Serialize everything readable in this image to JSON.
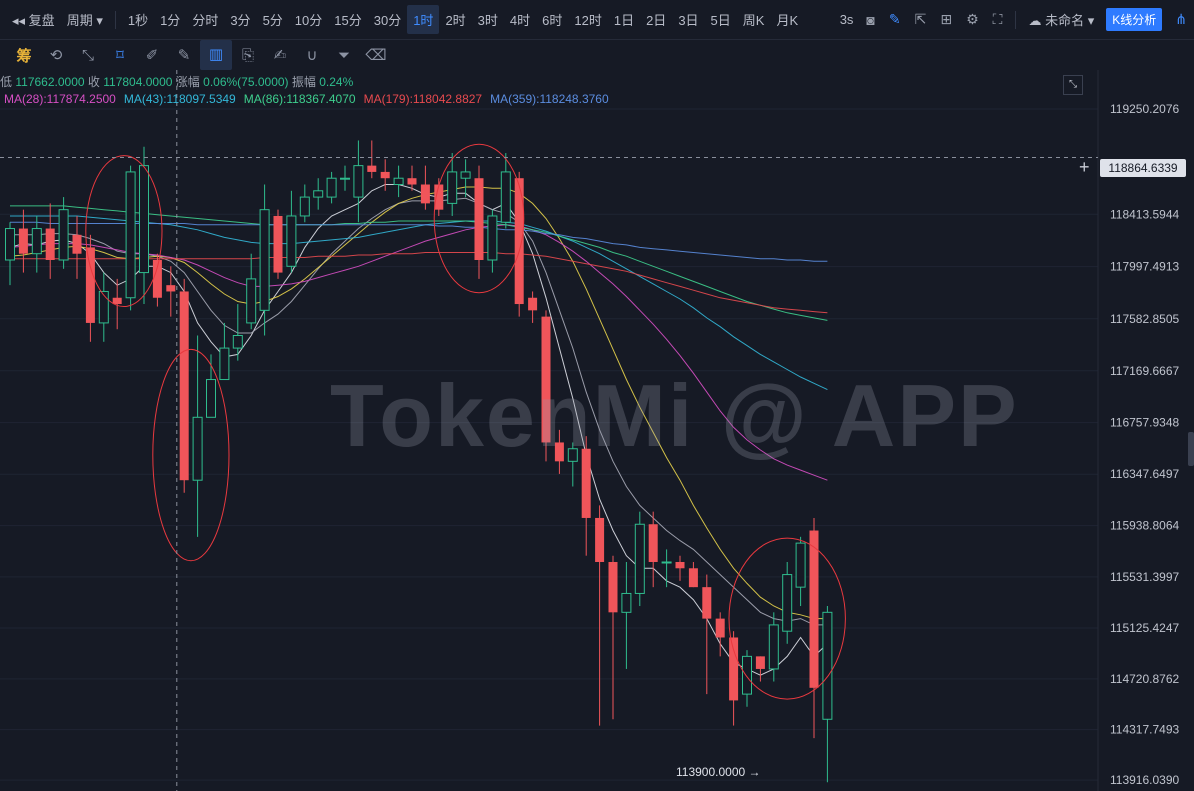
{
  "toolbar": {
    "replay_label": "复盘",
    "period_label": "周期",
    "intervals": [
      "1秒",
      "1分",
      "分时",
      "3分",
      "5分",
      "10分",
      "15分",
      "30分",
      "1时",
      "2时",
      "3时",
      "4时",
      "6时",
      "12时",
      "1日",
      "2日",
      "3日",
      "5日",
      "周K",
      "月K"
    ],
    "active_interval": "1时",
    "refresh_label": "3s",
    "layout_name": "未命名",
    "analysis_button": "K线分析"
  },
  "drawing_tools": [
    "chips-icon",
    "drawing-tools-icon",
    "ruler-icon",
    "cursor-icon",
    "pin-icon",
    "pencil-icon",
    "candles-icon",
    "clipboard-icon",
    "notes-icon",
    "magnet-icon",
    "filter-icon",
    "trash-icon"
  ],
  "draw_first_label": "筹",
  "ohlc": {
    "low_label": "低",
    "low": "117662.0000",
    "close_label": "收",
    "close": "117804.0000",
    "change_label": "涨幅",
    "change": "0.06%(75.0000)",
    "amplitude_label": "振幅",
    "amplitude": "0.24%"
  },
  "ma_legend": [
    {
      "label": "MA(28):117874.2500",
      "color": "#d64fc4"
    },
    {
      "label": "MA(43):118097.5349",
      "color": "#33b8d9"
    },
    {
      "label": "MA(86):118367.4070",
      "color": "#3ecf8e"
    },
    {
      "label": "MA(179):118042.8827",
      "color": "#e84a4f"
    },
    {
      "label": "MA(359):118248.3760",
      "color": "#5b8de0"
    }
  ],
  "crosshair_price": "118864.6339",
  "low_marker": "113900.0000 →",
  "watermark": "TokenMi @ APP",
  "colors": {
    "up": "#2fbd8e",
    "down": "#f0555a",
    "grid": "#1f2433",
    "axis_text": "#c0c4ce"
  },
  "chart_data": {
    "type": "candlestick",
    "y_ticks": [
      119250.2076,
      118413.5944,
      117997.4913,
      117582.8505,
      117169.6667,
      116757.9348,
      116347.6497,
      115938.8064,
      115531.3997,
      115125.4247,
      114720.8762,
      114317.7493,
      113916.039
    ],
    "ylim": [
      113830,
      119560
    ],
    "candles": [
      [
        118050,
        118300,
        118350,
        117850
      ],
      [
        118300,
        118100,
        118450,
        117950
      ],
      [
        118100,
        118300,
        118400,
        117950
      ],
      [
        118300,
        118050,
        118500,
        117900
      ],
      [
        118050,
        118450,
        118550,
        117980
      ],
      [
        118250,
        118100,
        118400,
        117900
      ],
      [
        118150,
        117550,
        118250,
        117400
      ],
      [
        117550,
        117800,
        117950,
        117400
      ],
      [
        117750,
        117700,
        117900,
        117500
      ],
      [
        117750,
        118750,
        118800,
        117650
      ],
      [
        117950,
        118800,
        118950,
        117700
      ],
      [
        118050,
        117750,
        118100,
        117680
      ],
      [
        117850,
        117800,
        118000,
        117600
      ],
      [
        117800,
        116300,
        117900,
        116200
      ],
      [
        116300,
        116800,
        117450,
        115850
      ],
      [
        116800,
        117100,
        117300,
        116800
      ],
      [
        117100,
        117350,
        117550,
        117100
      ],
      [
        117350,
        117450,
        117700,
        117250
      ],
      [
        117550,
        117900,
        118100,
        117500
      ],
      [
        117650,
        118450,
        118650,
        117450
      ],
      [
        118400,
        117950,
        118450,
        117900
      ],
      [
        118000,
        118400,
        118600,
        117950
      ],
      [
        118400,
        118550,
        118650,
        118350
      ],
      [
        118550,
        118600,
        118700,
        118450
      ],
      [
        118550,
        118700,
        118750,
        118500
      ],
      [
        118700,
        118700,
        118800,
        118600
      ],
      [
        118550,
        118800,
        119000,
        118350
      ],
      [
        118800,
        118750,
        119000,
        118700
      ],
      [
        118750,
        118700,
        118850,
        118600
      ],
      [
        118650,
        118700,
        118800,
        118550
      ],
      [
        118700,
        118650,
        118800,
        118600
      ],
      [
        118650,
        118500,
        118800,
        118450
      ],
      [
        118650,
        118450,
        118700,
        118400
      ],
      [
        118500,
        118750,
        118900,
        118400
      ],
      [
        118700,
        118750,
        118850,
        118550
      ],
      [
        118700,
        118050,
        118800,
        117900
      ],
      [
        118050,
        118400,
        118450,
        117950
      ],
      [
        118350,
        118750,
        118900,
        118300
      ],
      [
        118700,
        117700,
        118750,
        117600
      ],
      [
        117750,
        117650,
        117800,
        117550
      ],
      [
        117600,
        116600,
        117650,
        116450
      ],
      [
        116600,
        116450,
        116700,
        116350
      ],
      [
        116450,
        116550,
        116600,
        116250
      ],
      [
        116550,
        116000,
        116650,
        115700
      ],
      [
        116000,
        115650,
        116100,
        114350
      ],
      [
        115650,
        115250,
        115700,
        114400
      ],
      [
        115250,
        115400,
        115650,
        114800
      ],
      [
        115400,
        115950,
        116050,
        115300
      ],
      [
        115950,
        115650,
        116050,
        115450
      ],
      [
        115650,
        115650,
        115750,
        115450
      ],
      [
        115650,
        115600,
        115700,
        115500
      ],
      [
        115600,
        115450,
        115650,
        115450
      ],
      [
        115450,
        115200,
        115550,
        114600
      ],
      [
        115200,
        115050,
        115250,
        114900
      ],
      [
        115050,
        114550,
        115100,
        114350
      ],
      [
        114600,
        114900,
        114950,
        114500
      ],
      [
        114900,
        114800,
        114900,
        114700
      ],
      [
        114800,
        115150,
        115250,
        114700
      ],
      [
        115100,
        115550,
        115650,
        115000
      ],
      [
        115450,
        115800,
        115850,
        115300
      ],
      [
        115900,
        114650,
        116000,
        114250
      ],
      [
        114400,
        115250,
        115300,
        113900
      ]
    ],
    "ma_lines": [
      {
        "color": "#e0e2ea",
        "values": [
          118150,
          118180,
          118170,
          118200,
          118210,
          118180,
          118100,
          117950,
          117850,
          117900,
          118000,
          118000,
          117950,
          117800,
          117550,
          117400,
          117280,
          117300,
          117450,
          117650,
          117800,
          117950,
          118150,
          118300,
          118400,
          118450,
          118500,
          118600,
          118650,
          118650,
          118620,
          118570,
          118550,
          118580,
          118580,
          118500,
          118450,
          118500,
          118350,
          118100,
          117750,
          117350,
          116950,
          116500,
          116150,
          115900,
          115700,
          115600,
          115600,
          115500,
          115450,
          115350,
          115200,
          115000,
          114850,
          114800,
          114750,
          114800,
          114900,
          115050,
          114900,
          115000
        ]
      },
      {
        "color": "#a8abb8",
        "values": [
          118250,
          118250,
          118250,
          118260,
          118260,
          118250,
          118220,
          118180,
          118120,
          118100,
          118100,
          118080,
          118040,
          117950,
          117800,
          117650,
          117530,
          117470,
          117470,
          117550,
          117620,
          117720,
          117850,
          117980,
          118100,
          118200,
          118300,
          118380,
          118450,
          118500,
          118520,
          118520,
          118520,
          118530,
          118540,
          118500,
          118450,
          118420,
          118350,
          118200,
          117950,
          117650,
          117350,
          117000,
          116700,
          116450,
          116250,
          116100,
          116000,
          115900,
          115820,
          115750,
          115650,
          115550,
          115450,
          115350,
          115250,
          115200,
          115180,
          115200,
          115150,
          115150
        ]
      },
      {
        "color": "#e8d44d",
        "values": [
          118080,
          118090,
          118110,
          118130,
          118150,
          118160,
          118140,
          118110,
          118070,
          118060,
          118070,
          118080,
          118070,
          118030,
          117950,
          117860,
          117780,
          117720,
          117700,
          117720,
          117760,
          117820,
          117900,
          117990,
          118080,
          118170,
          118260,
          118350,
          118430,
          118500,
          118540,
          118570,
          118590,
          118610,
          118630,
          118630,
          118620,
          118620,
          118580,
          118500,
          118380,
          118220,
          118040,
          117820,
          117580,
          117340,
          117100,
          116880,
          116680,
          116480,
          116300,
          116100,
          115920,
          115750,
          115600,
          115480,
          115370,
          115300,
          115250,
          115230,
          115200,
          115200
        ]
      },
      {
        "color": "#d64fc4",
        "values": [
          118150,
          118160,
          118170,
          118180,
          118180,
          118180,
          118170,
          118150,
          118130,
          118110,
          118100,
          118090,
          118070,
          118050,
          118010,
          117960,
          117910,
          117870,
          117840,
          117840,
          117850,
          117860,
          117880,
          117910,
          117940,
          117970,
          118000,
          118040,
          118080,
          118120,
          118160,
          118200,
          118230,
          118260,
          118290,
          118310,
          118320,
          118330,
          118320,
          118290,
          118250,
          118190,
          118120,
          118040,
          117950,
          117860,
          117760,
          117650,
          117540,
          117420,
          117290,
          117150,
          117000,
          116850,
          116720,
          116620,
          116540,
          116470,
          116420,
          116380,
          116340,
          116300
        ]
      },
      {
        "color": "#33b8d9",
        "values": [
          118400,
          118400,
          118400,
          118400,
          118400,
          118400,
          118390,
          118380,
          118370,
          118360,
          118350,
          118340,
          118330,
          118310,
          118290,
          118260,
          118230,
          118210,
          118190,
          118180,
          118180,
          118180,
          118190,
          118200,
          118210,
          118220,
          118230,
          118250,
          118270,
          118290,
          118310,
          118330,
          118340,
          118350,
          118360,
          118360,
          118360,
          118350,
          118340,
          118310,
          118280,
          118240,
          118200,
          118150,
          118100,
          118040,
          117980,
          117920,
          117860,
          117800,
          117740,
          117670,
          117590,
          117520,
          117440,
          117370,
          117300,
          117240,
          117180,
          117120,
          117070,
          117020
        ]
      },
      {
        "color": "#3ecf8e",
        "values": [
          118480,
          118480,
          118480,
          118480,
          118480,
          118470,
          118460,
          118450,
          118440,
          118430,
          118420,
          118410,
          118400,
          118390,
          118380,
          118370,
          118360,
          118350,
          118340,
          118330,
          118330,
          118330,
          118330,
          118330,
          118330,
          118340,
          118340,
          118350,
          118350,
          118360,
          118360,
          118360,
          118360,
          118360,
          118360,
          118350,
          118340,
          118330,
          118310,
          118290,
          118270,
          118240,
          118210,
          118180,
          118150,
          118110,
          118080,
          118040,
          118000,
          117960,
          117920,
          117880,
          117840,
          117800,
          117760,
          117720,
          117690,
          117660,
          117630,
          117610,
          117590,
          117570
        ]
      },
      {
        "color": "#e84a4f",
        "values": [
          118060,
          118060,
          118060,
          118060,
          118060,
          118060,
          118060,
          118060,
          118060,
          118060,
          118060,
          118060,
          118060,
          118060,
          118060,
          118060,
          118060,
          118060,
          118060,
          118070,
          118070,
          118070,
          118070,
          118080,
          118080,
          118080,
          118090,
          118090,
          118100,
          118100,
          118100,
          118110,
          118110,
          118110,
          118110,
          118110,
          118110,
          118100,
          118100,
          118090,
          118080,
          118060,
          118040,
          118020,
          118000,
          117980,
          117960,
          117930,
          117900,
          117870,
          117840,
          117810,
          117780,
          117750,
          117730,
          117710,
          117690,
          117670,
          117660,
          117650,
          117640,
          117630
        ]
      },
      {
        "color": "#5b8de0",
        "values": [
          118350,
          118350,
          118350,
          118340,
          118340,
          118340,
          118340,
          118340,
          118340,
          118340,
          118340,
          118340,
          118340,
          118340,
          118330,
          118330,
          118330,
          118330,
          118330,
          118330,
          118330,
          118330,
          118330,
          118330,
          118330,
          118330,
          118330,
          118330,
          118330,
          118330,
          118330,
          118330,
          118320,
          118320,
          118310,
          118310,
          118300,
          118290,
          118290,
          118280,
          118260,
          118250,
          118230,
          118220,
          118200,
          118180,
          118170,
          118150,
          118140,
          118130,
          118120,
          118110,
          118100,
          118090,
          118080,
          118070,
          118060,
          118060,
          118050,
          118050,
          118040,
          118040
        ]
      }
    ],
    "annotation_circles": [
      {
        "candle_from": 7,
        "candle_to": 10,
        "center_price": 118280,
        "price_radius": 600
      },
      {
        "candle_from": 12,
        "candle_to": 15,
        "center_price": 116500,
        "price_radius": 840
      },
      {
        "candle_from": 33,
        "candle_to": 37,
        "center_price": 118380,
        "price_radius": 590
      },
      {
        "candle_from": 55,
        "candle_to": 61,
        "center_price": 115200,
        "price_radius": 640
      }
    ],
    "crosshair_price_value": 118864.6339,
    "crosshair_candle": 12
  }
}
